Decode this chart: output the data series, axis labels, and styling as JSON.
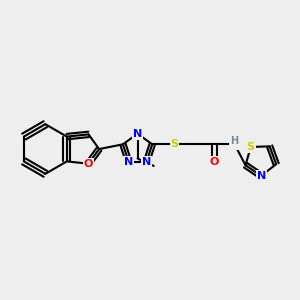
{
  "bg_color": "#eeeeee",
  "bond_color": "#000000",
  "bond_width": 1.5,
  "figsize": [
    3.0,
    3.0
  ],
  "dpi": 100,
  "atom_colors": {
    "N": "#0000ff",
    "O": "#ff0000",
    "S": "#cccc00",
    "H": "#778899",
    "C": "#000000"
  }
}
